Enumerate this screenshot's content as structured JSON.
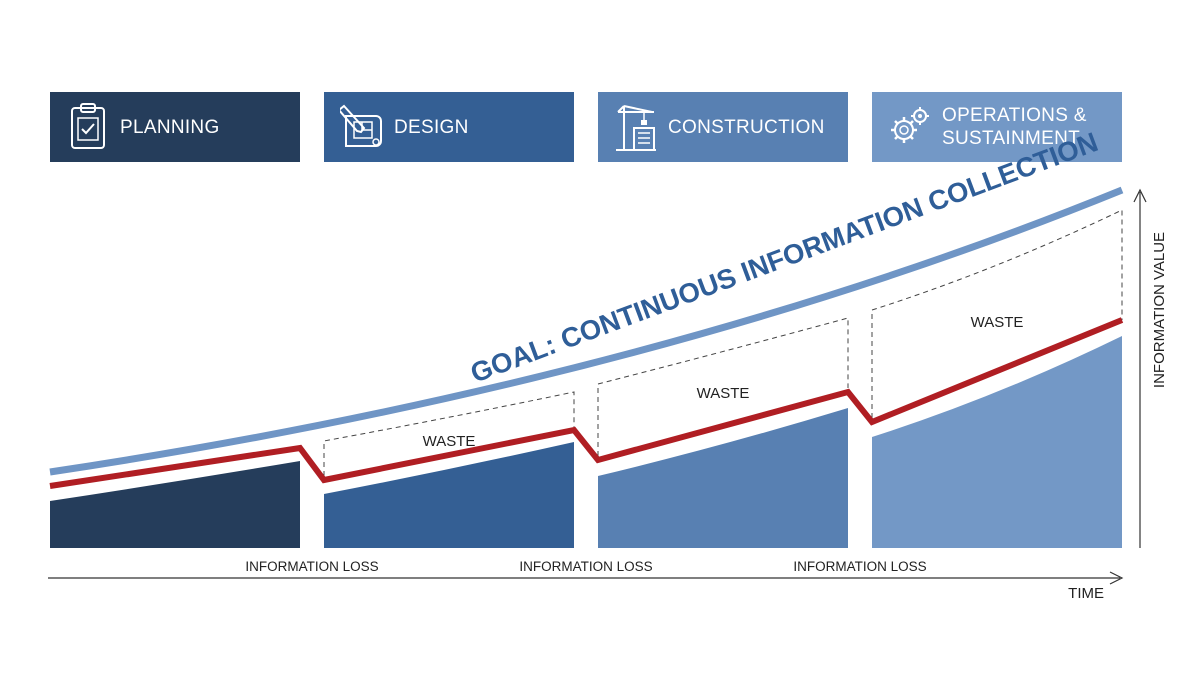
{
  "phases": [
    {
      "label": "PLANNING",
      "icon": "clipboard-icon",
      "color": "#253d5b"
    },
    {
      "label": "DESIGN",
      "icon": "blueprint-pencil-icon",
      "color": "#345f94"
    },
    {
      "label": "CONSTRUCTION",
      "icon": "crane-building-icon",
      "color": "#5880b2"
    },
    {
      "label": "OPERATIONS & SUSTAINMENT",
      "label_line1": "OPERATIONS &",
      "label_line2": "SUSTAINMENT",
      "icon": "gears-icon",
      "color": "#7398c6"
    }
  ],
  "goal_label": "GOAL: CONTINUOUS INFORMATION COLLECTION",
  "waste_labels": [
    "WASTE",
    "WASTE",
    "WASTE"
  ],
  "loss_labels": [
    "INFORMATION LOSS",
    "INFORMATION LOSS",
    "INFORMATION LOSS"
  ],
  "axis": {
    "x_label": "TIME",
    "y_label": "INFORMATION VALUE"
  },
  "colors": {
    "goal_line": "#6f95c5",
    "actual_line": "#b01e23",
    "goal_text": "#2f5e98",
    "axis": "#333333"
  }
}
